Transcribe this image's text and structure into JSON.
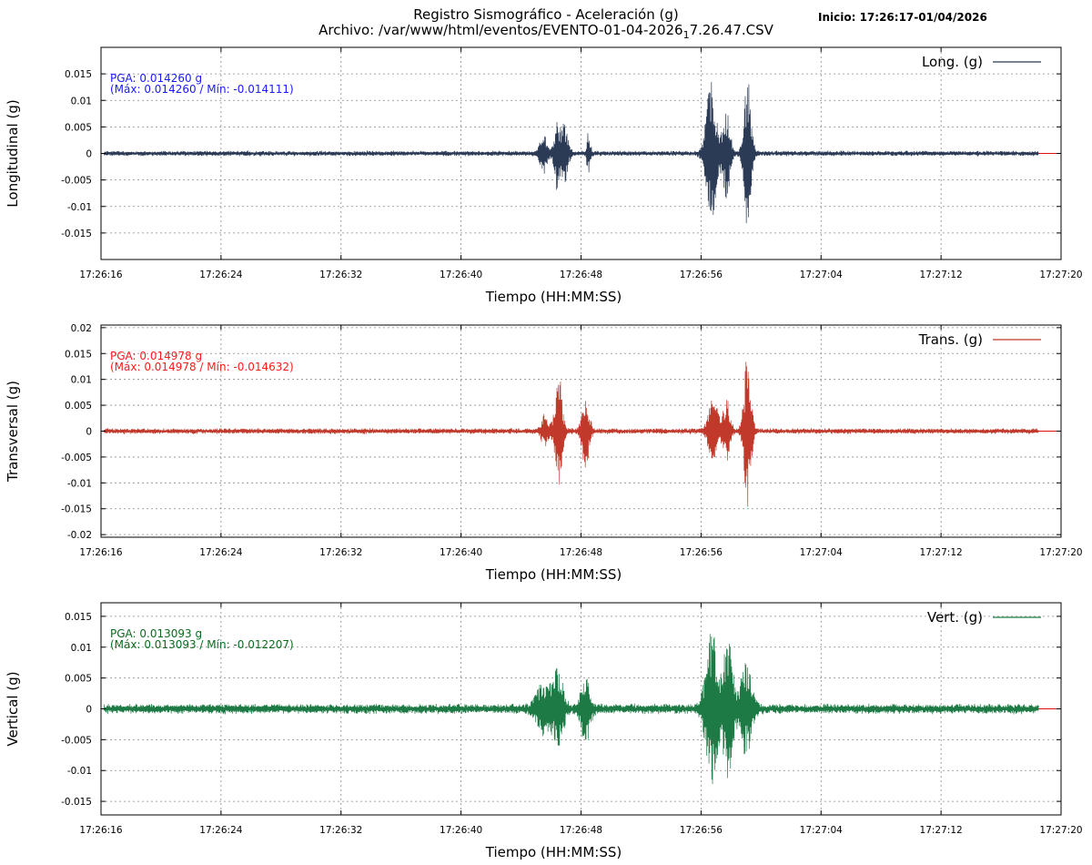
{
  "header": {
    "title_line1": "Registro Sismográfico - Aceleración (g)",
    "title_line2_pre": "Archivo: /var/www/html/eventos/EVENTO-01-04-2026",
    "title_line2_sub": "1",
    "title_line2_post": "7.26.47.CSV",
    "inicio": "Inicio: 17:26:17-01/04/2026"
  },
  "chart_data": [
    {
      "type": "line",
      "id": "long",
      "ylabel": "Longitudinal (g)",
      "xlabel": "Tiempo (HH:MM:SS)",
      "legend": "Long. (g)",
      "legend_position": "top-right",
      "grid": true,
      "color": "#2b3a55",
      "pga_line1": "PGA: 0.014260 g",
      "pga_line2": "(Máx: 0.014260 / Mín: -0.014111)",
      "pga_color": "#1a1aff",
      "pga_max": 0.01426,
      "pga_min": -0.014111,
      "ylim": [
        -0.02,
        0.02
      ],
      "yticks": [
        -0.015,
        -0.01,
        -0.005,
        0,
        0.005,
        0.01,
        0.015
      ],
      "ytick_labels": [
        "-0.015",
        "-0.01",
        "-0.005",
        "0",
        "0.005",
        "0.01",
        "0.015"
      ],
      "xlim_s": [
        0,
        64
      ],
      "xticks_s": [
        0,
        8,
        16,
        24,
        32,
        40,
        48,
        56,
        64
      ],
      "xtick_labels": [
        "17:26:16",
        "17:26:24",
        "17:26:32",
        "17:26:40",
        "17:26:48",
        "17:26:56",
        "17:27:04",
        "17:27:12",
        "17:27:20"
      ],
      "record_range_s": [
        0.2,
        62.5
      ],
      "noise_g": 0.00055,
      "bursts": [
        {
          "t": 29.5,
          "w": 0.3,
          "amp": 0.0035
        },
        {
          "t": 30.4,
          "w": 0.25,
          "amp": 0.0065
        },
        {
          "t": 30.9,
          "w": 0.3,
          "amp": 0.0055
        },
        {
          "t": 32.5,
          "w": 0.15,
          "amp": 0.004
        },
        {
          "t": 40.7,
          "w": 0.45,
          "amp": 0.0135
        },
        {
          "t": 41.7,
          "w": 0.3,
          "amp": 0.0085
        },
        {
          "t": 43.1,
          "w": 0.3,
          "amp": 0.0142
        }
      ]
    },
    {
      "type": "line",
      "id": "trans",
      "ylabel": "Transversal (g)",
      "xlabel": "Tiempo (HH:MM:SS)",
      "legend": "Trans. (g)",
      "legend_position": "top-right",
      "grid": true,
      "color": "#c0392b",
      "pga_line1": "PGA: 0.014978 g",
      "pga_line2": "(Máx: 0.014978 / Mín: -0.014632)",
      "pga_color": "#ff1a1a",
      "pga_max": 0.014978,
      "pga_min": -0.014632,
      "ylim": [
        -0.0205,
        0.0205
      ],
      "yticks": [
        -0.02,
        -0.015,
        -0.01,
        -0.005,
        0,
        0.005,
        0.01,
        0.015,
        0.02
      ],
      "ytick_labels": [
        "-0.02",
        "-0.015",
        "-0.01",
        "-0.005",
        "0",
        "0.005",
        "0.01",
        "0.015",
        "0.02"
      ],
      "xlim_s": [
        0,
        64
      ],
      "xticks_s": [
        0,
        8,
        16,
        24,
        32,
        40,
        48,
        56,
        64
      ],
      "xtick_labels": [
        "17:26:16",
        "17:26:24",
        "17:26:32",
        "17:26:40",
        "17:26:48",
        "17:26:56",
        "17:27:04",
        "17:27:12",
        "17:27:20"
      ],
      "record_range_s": [
        0.2,
        62.5
      ],
      "noise_g": 0.0006,
      "bursts": [
        {
          "t": 29.6,
          "w": 0.3,
          "amp": 0.003
        },
        {
          "t": 30.5,
          "w": 0.3,
          "amp": 0.011
        },
        {
          "t": 32.3,
          "w": 0.3,
          "amp": 0.007
        },
        {
          "t": 40.8,
          "w": 0.4,
          "amp": 0.0065
        },
        {
          "t": 41.7,
          "w": 0.3,
          "amp": 0.006
        },
        {
          "t": 43.1,
          "w": 0.3,
          "amp": 0.0149
        }
      ]
    },
    {
      "type": "line",
      "id": "vert",
      "ylabel": "Vertical (g)",
      "xlabel": "Tiempo (HH:MM:SS)",
      "legend": "Vert. (g)",
      "legend_position": "top-right",
      "grid": true,
      "color": "#1e7a45",
      "pga_line1": "PGA: 0.013093 g",
      "pga_line2": "(Máx: 0.013093 / Mín: -0.012207)",
      "pga_color": "#0b6b1e",
      "pga_max": 0.013093,
      "pga_min": -0.012207,
      "ylim": [
        -0.0172,
        0.0172
      ],
      "yticks": [
        -0.015,
        -0.01,
        -0.005,
        0,
        0.005,
        0.01,
        0.015
      ],
      "ytick_labels": [
        "-0.015",
        "-0.01",
        "-0.005",
        "0",
        "0.005",
        "0.01",
        "0.015"
      ],
      "xlim_s": [
        0,
        64
      ],
      "xticks_s": [
        0,
        8,
        16,
        24,
        32,
        40,
        48,
        56,
        64
      ],
      "xtick_labels": [
        "17:26:16",
        "17:26:24",
        "17:26:32",
        "17:26:40",
        "17:26:48",
        "17:26:56",
        "17:27:04",
        "17:27:12",
        "17:27:20"
      ],
      "record_range_s": [
        0.2,
        62.5
      ],
      "noise_g": 0.0009,
      "bursts": [
        {
          "t": 29.5,
          "w": 0.6,
          "amp": 0.004
        },
        {
          "t": 30.5,
          "w": 0.4,
          "amp": 0.007
        },
        {
          "t": 32.3,
          "w": 0.4,
          "amp": 0.005
        },
        {
          "t": 40.7,
          "w": 0.5,
          "amp": 0.0128
        },
        {
          "t": 41.8,
          "w": 0.4,
          "amp": 0.011
        },
        {
          "t": 43.0,
          "w": 0.5,
          "amp": 0.007
        }
      ]
    }
  ]
}
